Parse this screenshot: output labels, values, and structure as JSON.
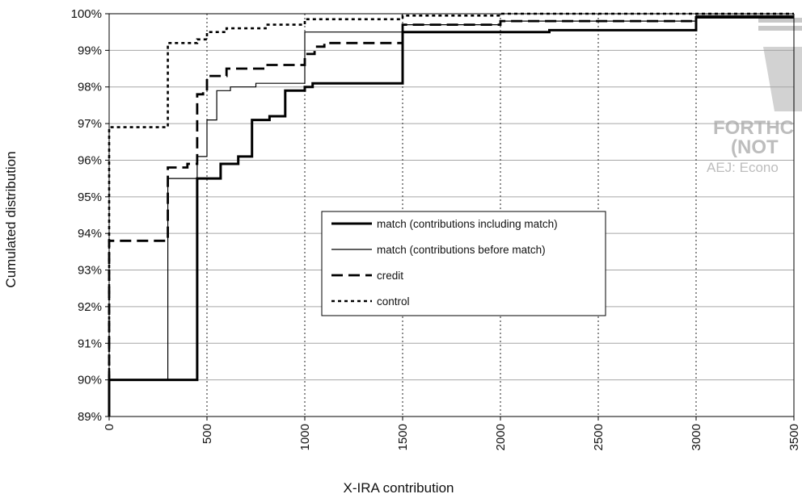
{
  "chart_data": {
    "type": "line",
    "title": "",
    "xlabel": "X-IRA contribution",
    "ylabel": "Cumulated distribution",
    "xlim": [
      0,
      3500
    ],
    "ylim": [
      89,
      100
    ],
    "x_ticks": [
      0,
      500,
      1000,
      1500,
      2000,
      2500,
      3000,
      3500
    ],
    "y_ticks": [
      89,
      90,
      91,
      92,
      93,
      94,
      95,
      96,
      97,
      98,
      99,
      100
    ],
    "x_tick_labels": [
      "0",
      "500",
      "1000",
      "1500",
      "2000",
      "2500",
      "3000",
      "3500"
    ],
    "y_tick_labels": [
      "89%",
      "90%",
      "91%",
      "92%",
      "93%",
      "94%",
      "95%",
      "96%",
      "97%",
      "98%",
      "99%",
      "100%"
    ],
    "grid": {
      "horizontal": "solid",
      "vertical": "dotted"
    },
    "legend_position": "center",
    "series": [
      {
        "name": "match (contributions including match)",
        "style": "thick-solid",
        "color": "#000000",
        "step": true,
        "points": [
          [
            0,
            89
          ],
          [
            0,
            90
          ],
          [
            450,
            90
          ],
          [
            450,
            95.5
          ],
          [
            570,
            95.5
          ],
          [
            570,
            95.9
          ],
          [
            660,
            95.9
          ],
          [
            660,
            96.1
          ],
          [
            730,
            96.1
          ],
          [
            730,
            97.1
          ],
          [
            820,
            97.1
          ],
          [
            820,
            97.2
          ],
          [
            900,
            97.2
          ],
          [
            900,
            97.9
          ],
          [
            1000,
            97.9
          ],
          [
            1000,
            98
          ],
          [
            1040,
            98
          ],
          [
            1040,
            98.1
          ],
          [
            1500,
            98.1
          ],
          [
            1500,
            99.5
          ],
          [
            2000,
            99.5
          ],
          [
            2000,
            99.5
          ],
          [
            2250,
            99.5
          ],
          [
            2250,
            99.55
          ],
          [
            3000,
            99.55
          ],
          [
            3000,
            99.9
          ],
          [
            3500,
            99.9
          ]
        ]
      },
      {
        "name": "match (contributions before match)",
        "style": "thin-solid",
        "color": "#000000",
        "step": true,
        "points": [
          [
            0,
            89
          ],
          [
            0,
            90
          ],
          [
            300,
            90
          ],
          [
            300,
            95.5
          ],
          [
            450,
            95.5
          ],
          [
            450,
            96.1
          ],
          [
            500,
            96.1
          ],
          [
            500,
            97.1
          ],
          [
            550,
            97.1
          ],
          [
            550,
            97.9
          ],
          [
            620,
            97.9
          ],
          [
            620,
            98
          ],
          [
            750,
            98
          ],
          [
            750,
            98.1
          ],
          [
            1000,
            98.1
          ],
          [
            1000,
            99.5
          ],
          [
            1500,
            99.5
          ],
          [
            1500,
            99.7
          ],
          [
            2000,
            99.7
          ],
          [
            2000,
            99.8
          ],
          [
            3000,
            99.8
          ],
          [
            3000,
            99.95
          ],
          [
            3500,
            99.95
          ]
        ]
      },
      {
        "name": "credit",
        "style": "dashed",
        "color": "#000000",
        "step": true,
        "points": [
          [
            0,
            89
          ],
          [
            0,
            93.8
          ],
          [
            300,
            93.8
          ],
          [
            300,
            95.8
          ],
          [
            400,
            95.8
          ],
          [
            400,
            95.9
          ],
          [
            450,
            95.9
          ],
          [
            450,
            97.8
          ],
          [
            480,
            97.8
          ],
          [
            480,
            97.9
          ],
          [
            500,
            97.9
          ],
          [
            500,
            98.3
          ],
          [
            600,
            98.3
          ],
          [
            600,
            98.5
          ],
          [
            800,
            98.5
          ],
          [
            800,
            98.6
          ],
          [
            1000,
            98.6
          ],
          [
            1000,
            98.9
          ],
          [
            1050,
            98.9
          ],
          [
            1050,
            99.1
          ],
          [
            1100,
            99.1
          ],
          [
            1100,
            99.2
          ],
          [
            1500,
            99.2
          ],
          [
            1500,
            99.7
          ],
          [
            2000,
            99.7
          ],
          [
            2000,
            99.8
          ],
          [
            3000,
            99.8
          ],
          [
            3000,
            99.9
          ],
          [
            3500,
            99.9
          ]
        ]
      },
      {
        "name": "control",
        "style": "dotted",
        "color": "#000000",
        "step": true,
        "points": [
          [
            0,
            89
          ],
          [
            0,
            96.9
          ],
          [
            300,
            96.9
          ],
          [
            300,
            99.2
          ],
          [
            450,
            99.2
          ],
          [
            450,
            99.3
          ],
          [
            500,
            99.3
          ],
          [
            500,
            99.5
          ],
          [
            600,
            99.5
          ],
          [
            600,
            99.6
          ],
          [
            800,
            99.6
          ],
          [
            800,
            99.7
          ],
          [
            1000,
            99.7
          ],
          [
            1000,
            99.85
          ],
          [
            1500,
            99.85
          ],
          [
            1500,
            99.95
          ],
          [
            2000,
            99.95
          ],
          [
            2000,
            100
          ],
          [
            3500,
            100
          ]
        ]
      }
    ]
  },
  "watermark": {
    "line1": "FORTHC",
    "line2": "(NOT",
    "line3": "AEJ: Econo"
  }
}
